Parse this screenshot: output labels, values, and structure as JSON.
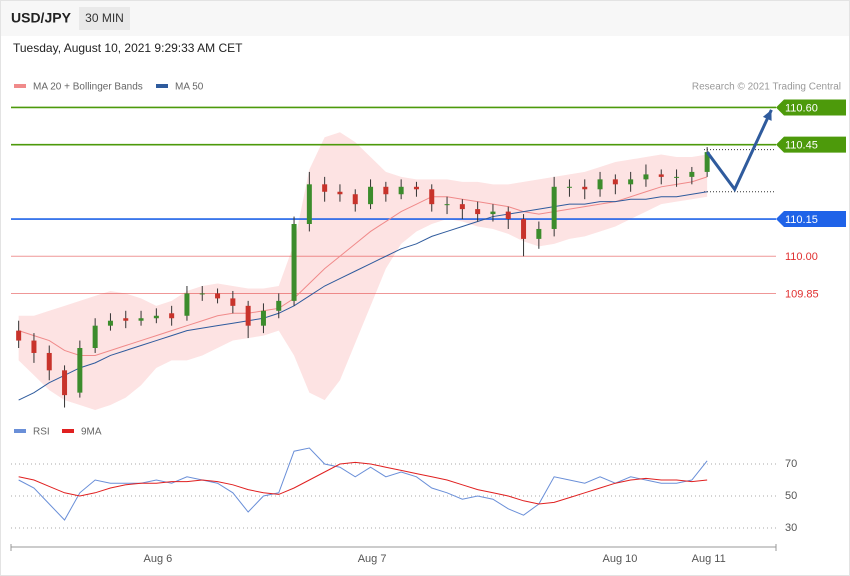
{
  "chart_data": [
    {
      "type": "candlestick",
      "symbol": "USD/JPY",
      "timeframe": "30 MIN",
      "timestamp": "Tuesday, August 10, 2021 9:29:33 AM CET",
      "credit": "Research © 2021 Trading Central",
      "xlim": [
        -0.5,
        49.5
      ],
      "xticks": [
        {
          "value": 9.1,
          "label": "Aug 6"
        },
        {
          "value": 23.1,
          "label": "Aug 7"
        },
        {
          "value": 39.3,
          "label": "Aug 10"
        },
        {
          "value": 45.1,
          "label": "Aug 11"
        }
      ],
      "ylim": [
        109.38,
        110.63
      ],
      "up_color": "#3c8c2c",
      "down_color": "#c8332b",
      "open": [
        109.7,
        109.66,
        109.61,
        109.54,
        109.45,
        109.63,
        109.72,
        109.75,
        109.74,
        109.75,
        109.77,
        109.76,
        109.85,
        109.85,
        109.83,
        109.8,
        109.72,
        109.78,
        109.82,
        110.13,
        110.29,
        110.26,
        110.25,
        110.21,
        110.28,
        110.25,
        110.28,
        110.27,
        110.21,
        110.21,
        110.19,
        110.17,
        110.18,
        110.15,
        110.07,
        110.11,
        110.28,
        110.28,
        110.27,
        110.31,
        110.29,
        110.31,
        110.33,
        110.32,
        110.32,
        110.34
      ],
      "high": [
        109.74,
        109.69,
        109.64,
        109.56,
        109.66,
        109.75,
        109.77,
        109.78,
        109.78,
        109.79,
        109.8,
        109.88,
        109.88,
        109.87,
        109.86,
        109.82,
        109.81,
        109.85,
        110.16,
        110.34,
        110.32,
        110.29,
        110.27,
        110.31,
        110.3,
        110.31,
        110.3,
        110.29,
        110.24,
        110.23,
        110.22,
        110.21,
        110.2,
        110.17,
        110.14,
        110.32,
        110.31,
        110.31,
        110.34,
        110.33,
        110.34,
        110.37,
        110.35,
        110.35,
        110.36,
        110.44
      ],
      "low": [
        109.63,
        109.57,
        109.5,
        109.39,
        109.43,
        109.61,
        109.7,
        109.71,
        109.72,
        109.73,
        109.72,
        109.74,
        109.82,
        109.81,
        109.77,
        109.67,
        109.69,
        109.75,
        109.8,
        110.1,
        110.22,
        110.22,
        110.18,
        110.19,
        110.22,
        110.23,
        110.24,
        110.18,
        110.17,
        110.15,
        110.14,
        110.14,
        110.11,
        110.0,
        110.03,
        110.08,
        110.24,
        110.23,
        110.24,
        110.25,
        110.26,
        110.28,
        110.29,
        110.28,
        110.29,
        110.32
      ],
      "close": [
        109.66,
        109.61,
        109.54,
        109.44,
        109.63,
        109.72,
        109.74,
        109.74,
        109.75,
        109.76,
        109.75,
        109.85,
        109.85,
        109.83,
        109.8,
        109.72,
        109.78,
        109.82,
        110.13,
        110.29,
        110.26,
        110.25,
        110.21,
        110.28,
        110.25,
        110.28,
        110.27,
        110.21,
        110.21,
        110.19,
        110.17,
        110.18,
        110.15,
        110.07,
        110.11,
        110.28,
        110.28,
        110.27,
        110.31,
        110.29,
        110.31,
        110.33,
        110.32,
        110.32,
        110.34,
        110.42
      ],
      "series": [
        {
          "name": "MA 20 + Bollinger Bands",
          "color": "#f08a8a",
          "band_color": "#fde3e3",
          "values": [
            109.7,
            109.68,
            109.66,
            109.62,
            109.6,
            109.6,
            109.62,
            109.64,
            109.66,
            109.68,
            109.7,
            109.72,
            109.74,
            109.76,
            109.77,
            109.77,
            109.78,
            109.79,
            109.83,
            109.89,
            109.95,
            110.0,
            110.05,
            110.1,
            110.14,
            110.18,
            110.21,
            110.24,
            110.24,
            110.23,
            110.22,
            110.21,
            110.2,
            110.18,
            110.17,
            110.18,
            110.19,
            110.2,
            110.21,
            110.22,
            110.24,
            110.26,
            110.28,
            110.29,
            110.3,
            110.32
          ],
          "upper": [
            109.76,
            109.76,
            109.78,
            109.8,
            109.82,
            109.84,
            109.86,
            109.85,
            109.83,
            109.8,
            109.82,
            109.86,
            109.88,
            109.89,
            109.88,
            109.87,
            109.87,
            109.88,
            110.05,
            110.35,
            110.48,
            110.5,
            110.46,
            110.4,
            110.34,
            110.32,
            110.31,
            110.31,
            110.31,
            110.3,
            110.3,
            110.29,
            110.29,
            110.3,
            110.31,
            110.32,
            110.33,
            110.34,
            110.36,
            110.38,
            110.39,
            110.4,
            110.41,
            110.4,
            110.4,
            110.41
          ],
          "lower": [
            109.58,
            109.52,
            109.46,
            109.42,
            109.4,
            109.38,
            109.4,
            109.43,
            109.48,
            109.55,
            109.58,
            109.58,
            109.6,
            109.63,
            109.66,
            109.67,
            109.68,
            109.7,
            109.6,
            109.45,
            109.42,
            109.5,
            109.65,
            109.8,
            109.95,
            110.05,
            110.1,
            110.13,
            110.15,
            110.14,
            110.12,
            110.11,
            110.09,
            110.06,
            110.04,
            110.05,
            110.07,
            110.08,
            110.1,
            110.12,
            110.15,
            110.18,
            110.21,
            110.22,
            110.23,
            110.24
          ]
        },
        {
          "name": "MA 50",
          "color": "#2f5b9d",
          "values": [
            109.42,
            109.45,
            109.49,
            109.52,
            109.55,
            109.57,
            109.6,
            109.62,
            109.64,
            109.66,
            109.68,
            109.7,
            109.71,
            109.72,
            109.73,
            109.74,
            109.75,
            109.77,
            109.8,
            109.84,
            109.88,
            109.91,
            109.94,
            109.97,
            110.0,
            110.03,
            110.05,
            110.08,
            110.1,
            110.12,
            110.14,
            110.16,
            110.17,
            110.18,
            110.19,
            110.2,
            110.21,
            110.21,
            110.22,
            110.22,
            110.23,
            110.23,
            110.24,
            110.24,
            110.25,
            110.26
          ]
        }
      ],
      "levels": [
        {
          "value": 110.6,
          "label": "110.60",
          "color": "#4d9a0b",
          "style": "box"
        },
        {
          "value": 110.45,
          "label": "110.45",
          "color": "#4d9a0b",
          "style": "box"
        },
        {
          "value": 110.15,
          "label": "110.15",
          "color": "#1f63e8",
          "style": "box"
        },
        {
          "value": 110,
          "label": "110.00",
          "color": "#e03030",
          "style": "text"
        },
        {
          "value": 109.85,
          "label": "109.85",
          "color": "#e03030",
          "style": "text"
        }
      ],
      "dotted_levels": [
        110.43,
        110.26
      ],
      "forecast": {
        "x": [
          45,
          46.8,
          49.2
        ],
        "values": [
          110.42,
          110.27,
          110.59
        ],
        "color": "#2f5b9d"
      }
    },
    {
      "type": "line",
      "xlim": [
        -0.5,
        49.5
      ],
      "ylim": [
        22.5,
        85
      ],
      "yticks": [
        70,
        50,
        30
      ],
      "grid": true,
      "series": [
        {
          "name": "RSI",
          "color": "#6a8fd8",
          "values": [
            60,
            55,
            45,
            35,
            52,
            60,
            58,
            58,
            58,
            60,
            58,
            62,
            60,
            58,
            52,
            40,
            50,
            52,
            78,
            80,
            70,
            68,
            62,
            68,
            62,
            65,
            62,
            55,
            52,
            48,
            50,
            48,
            42,
            38,
            45,
            62,
            60,
            58,
            62,
            58,
            62,
            60,
            58,
            58,
            60,
            72
          ]
        },
        {
          "name": "9MA",
          "color": "#e02020",
          "values": [
            62,
            60,
            56,
            52,
            50,
            52,
            55,
            57,
            58,
            58,
            59,
            59,
            60,
            59,
            57,
            54,
            52,
            51,
            55,
            60,
            65,
            70,
            71,
            70,
            68,
            66,
            64,
            62,
            60,
            57,
            54,
            52,
            50,
            47,
            45,
            46,
            49,
            52,
            55,
            58,
            60,
            61,
            60,
            60,
            59,
            60
          ]
        }
      ]
    }
  ]
}
